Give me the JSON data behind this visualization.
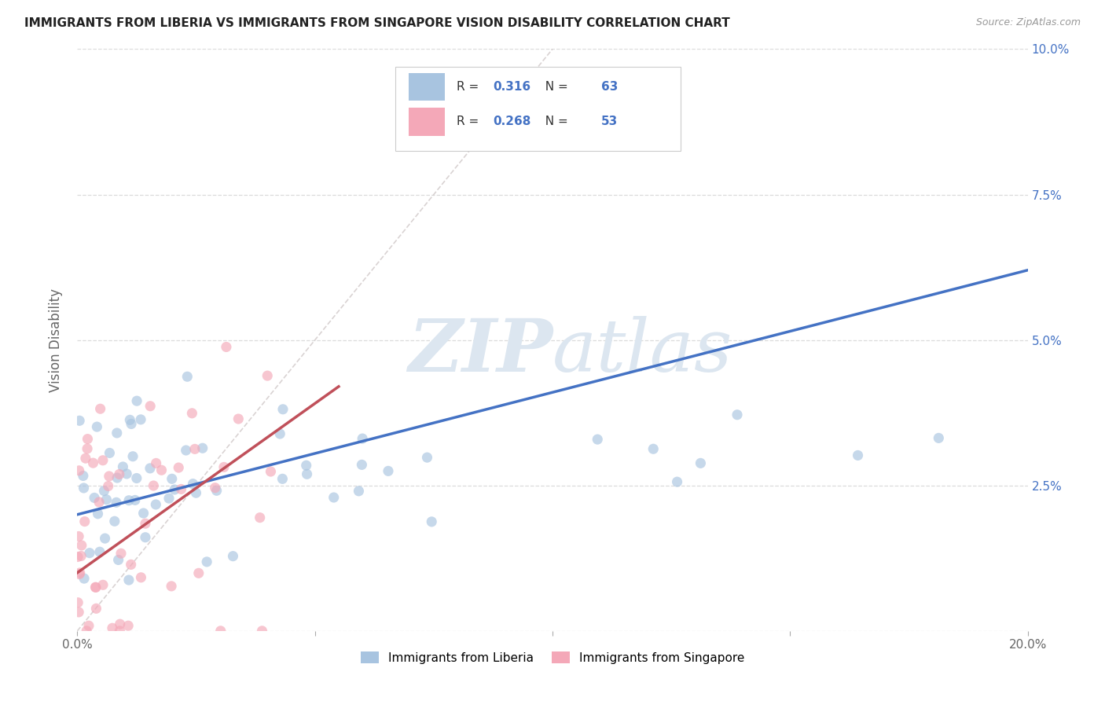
{
  "title": "IMMIGRANTS FROM LIBERIA VS IMMIGRANTS FROM SINGAPORE VISION DISABILITY CORRELATION CHART",
  "source": "Source: ZipAtlas.com",
  "ylabel": "Vision Disability",
  "legend_label1": "Immigrants from Liberia",
  "legend_label2": "Immigrants from Singapore",
  "R1": 0.316,
  "N1": 63,
  "R2": 0.268,
  "N2": 53,
  "color1": "#a8c4e0",
  "color2": "#f4a8b8",
  "trendline1_color": "#4472c4",
  "trendline2_color": "#c0505a",
  "diagonal_color": "#d0c8c8",
  "xlim": [
    0.0,
    0.2
  ],
  "ylim": [
    0.0,
    0.1
  ],
  "xticks": [
    0.0,
    0.05,
    0.1,
    0.15,
    0.2
  ],
  "xtick_labels": [
    "0.0%",
    "",
    "",
    "",
    "20.0%"
  ],
  "yticks": [
    0.0,
    0.025,
    0.05,
    0.075,
    0.1
  ],
  "ytick_labels_right": [
    "",
    "2.5%",
    "5.0%",
    "7.5%",
    "10.0%"
  ],
  "watermark": "ZIPatlas",
  "background_color": "#ffffff",
  "grid_color": "#d8d8d8",
  "blue_text": "#4472c4"
}
